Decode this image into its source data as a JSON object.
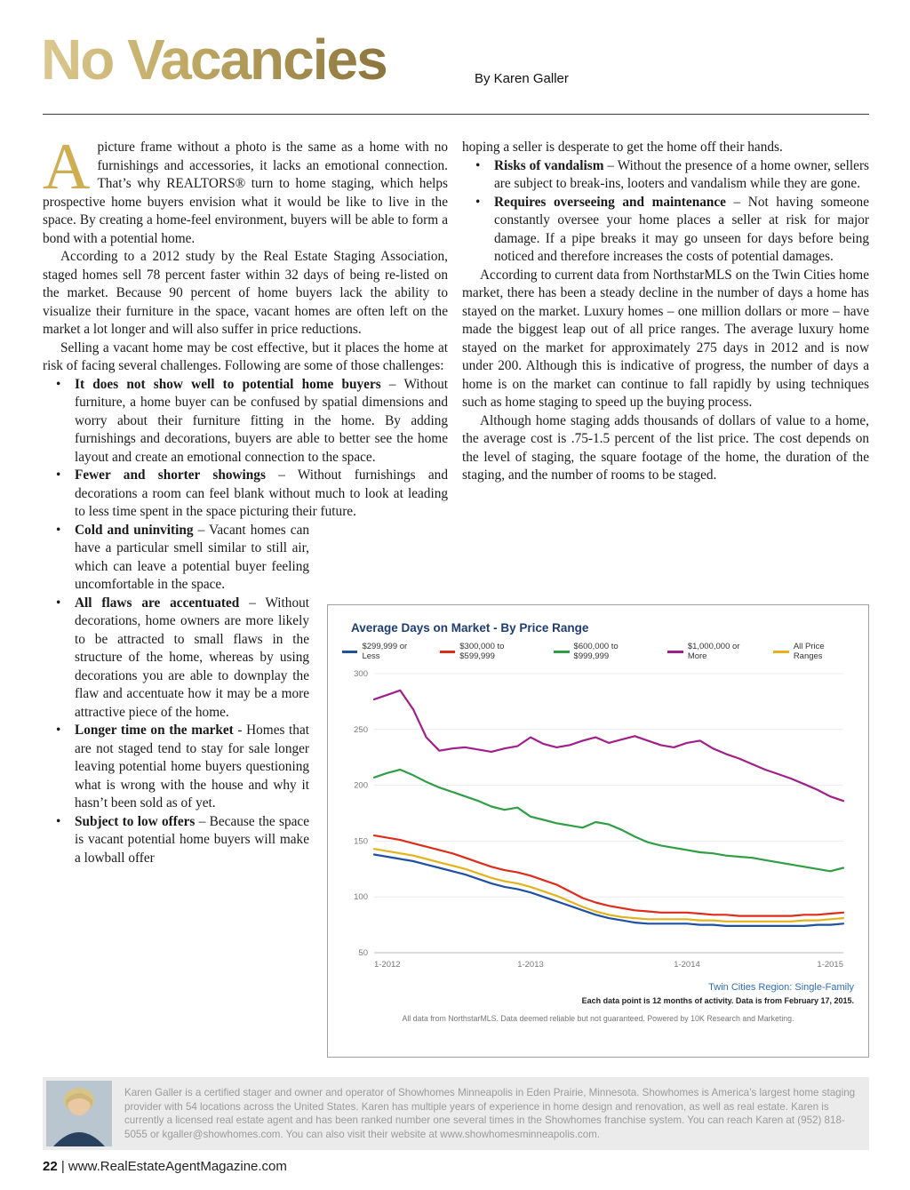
{
  "page": {
    "title": "No Vacancies",
    "byline": "By Karen Galler",
    "footer": {
      "page_number": "22",
      "site": "| www.RealEstateAgentMagazine.com"
    }
  },
  "article": {
    "dropcap": "A",
    "intro_rest": "picture frame without a photo is the same as a home with no furnishings and accessories, it lacks an emotional connection. That’s why REALTORS® turn to home staging, which helps prospective home buyers envision what it would be like to live in the space. By creating a home-feel environment, buyers will be able to form a bond with a potential home.",
    "para2": "According to a 2012 study by the Real Estate Staging Association, staged homes sell 78 percent faster within 32 days of being re-listed on the market. Because 90 percent of home buyers lack the ability to visualize their furniture in the space, vacant homes are often left on the market a lot longer and will also suffer in price reductions.",
    "para3": "Selling a vacant home may be cost effective, but it places the home at risk of facing several challenges. Following are some of those challenges:",
    "challenges": [
      {
        "title": "It does not show well to potential home buyers",
        "text": " – Without furniture, a home buyer can be confused by spatial dimensions and worry about their furniture fitting in the home. By adding furnishings and decorations, buyers are able to better see the home layout and create an emotional connection to the space."
      },
      {
        "title": "Fewer and shorter showings",
        "text": " – Without furnishings and decorations a room can feel blank without much to look at leading to less time spent in the space picturing their future."
      },
      {
        "title": "Cold and uninviting",
        "text": " – Vacant homes can have a particular smell similar to still air, which can leave a potential buyer feeling uncomfortable in the space."
      },
      {
        "title": "All flaws are accentuated",
        "text": " – Without decorations, home owners are more likely to be attracted to small flaws in the structure of the home, whereas by using decorations you are able to downplay the flaw and accentuate how it may be a more attractive piece of the home."
      },
      {
        "title": "Longer time on the market",
        "text": " - Homes that are not staged tend to stay for sale longer leaving potential home buyers questioning what is wrong with the house and why it hasn’t been sold as of yet."
      },
      {
        "title": "Subject to low offers",
        "text": " – Because the space is vacant potential home buyers will make a lowball offer"
      }
    ],
    "right_continuation": "hoping a seller is desperate to get the home off their hands.",
    "right_challenges": [
      {
        "title": "Risks of vandalism",
        "text": " – Without the presence of a home owner, sellers are subject to break-ins, looters and vandalism while they are gone."
      },
      {
        "title": "Requires overseeing and maintenance",
        "text": " – Not having someone constantly oversee your home places a seller at risk for major damage. If a pipe breaks it may go unseen for days before being noticed and therefore increases the costs of potential damages."
      }
    ],
    "para4": "According to current data from NorthstarMLS on the Twin Cities home market, there has been a steady decline in the number of days a home has stayed on the market. Luxury homes – one million dollars or more – have made the biggest leap out of all price ranges. The average luxury home stayed on the market for approximately 275 days in 2012 and is now under 200. Although this is indicative of progress, the number of days a home is on the market can continue to fall rapidly by using techniques such as home staging to speed up the buying process.",
    "para5": "Although home staging adds thousands of dollars of value to a home, the average cost is .75-1.5 percent of the list price. The cost depends on the level of staging, the square footage of the home, the duration of the staging, and the number of rooms to be staged."
  },
  "chart_data": {
    "type": "line",
    "title": "Average Days on Market - By Price Range",
    "x_tick_labels": [
      "1-2012",
      "1-2013",
      "1-2014",
      "1-2015"
    ],
    "ylim": [
      50,
      300
    ],
    "y_ticks": [
      50,
      100,
      150,
      200,
      250,
      300
    ],
    "legend_position": "top",
    "grid": false,
    "series": [
      {
        "name": "$299,999 or Less",
        "color": "#2050a0",
        "values": [
          138,
          136,
          134,
          132,
          129,
          126,
          123,
          120,
          116,
          112,
          109,
          107,
          104,
          100,
          96,
          92,
          88,
          84,
          81,
          79,
          77,
          76,
          76,
          76,
          76,
          75,
          75,
          74,
          74,
          74,
          74,
          74,
          74,
          74,
          75,
          75,
          76
        ]
      },
      {
        "name": "$300,000 to $599,999",
        "color": "#dd2c1a",
        "values": [
          155,
          153,
          151,
          148,
          145,
          142,
          139,
          135,
          131,
          127,
          124,
          122,
          119,
          115,
          111,
          105,
          99,
          95,
          92,
          90,
          88,
          87,
          86,
          86,
          86,
          85,
          84,
          84,
          83,
          83,
          83,
          83,
          83,
          84,
          84,
          85,
          86
        ]
      },
      {
        "name": "$600,000 to $999,999",
        "color": "#2f9e44",
        "values": [
          207,
          211,
          214,
          209,
          203,
          198,
          194,
          190,
          186,
          181,
          178,
          180,
          172,
          169,
          166,
          164,
          162,
          167,
          165,
          160,
          154,
          149,
          146,
          144,
          142,
          140,
          139,
          137,
          136,
          135,
          133,
          131,
          129,
          127,
          125,
          123,
          126
        ]
      },
      {
        "name": "$1,000,000 or More",
        "color": "#a11f8b",
        "values": [
          277,
          281,
          285,
          268,
          243,
          231,
          233,
          234,
          232,
          230,
          233,
          235,
          243,
          237,
          234,
          236,
          240,
          243,
          238,
          241,
          244,
          240,
          236,
          234,
          238,
          240,
          233,
          228,
          224,
          219,
          214,
          210,
          206,
          201,
          196,
          190,
          186
        ]
      },
      {
        "name": "All Price Ranges",
        "color": "#e3b31e",
        "values": [
          143,
          141,
          139,
          137,
          134,
          131,
          128,
          125,
          121,
          117,
          114,
          112,
          109,
          105,
          101,
          96,
          91,
          87,
          84,
          82,
          81,
          80,
          80,
          80,
          80,
          79,
          79,
          78,
          78,
          78,
          78,
          78,
          78,
          79,
          79,
          80,
          81
        ]
      }
    ],
    "footnote_region": "Twin Cities Region: Single-Family",
    "footnote_bold": "Each data point is 12 months of activity. Data is from February 17, 2015.",
    "footnote_source": "All data from NorthstarMLS. Data deemed reliable but not guaranteed. Powered by 10K Research and Marketing."
  },
  "bio": {
    "text": "Karen Galler is a certified stager and owner and operator of Showhomes Minneapolis in Eden Prairie, Minnesota. Showhomes is America’s largest home staging provider with 54 locations across the United States. Karen has multiple years of experience in home design and renovation, as well as real estate. Karen is currently a licensed real estate agent and has been ranked number one several times in the Showhomes franchise system. You can reach Karen at (952) 818-5055 or kgaller@showhomes.com. You can also visit their website at www.showhomesminneapolis.com."
  }
}
